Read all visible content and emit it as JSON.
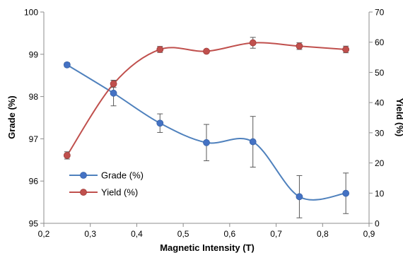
{
  "chart_data": {
    "type": "line",
    "title": "",
    "xlabel": "Magnetic Intensity (T)",
    "ylabel_left": "Grade (%)",
    "ylabel_right": "Yield  (%)",
    "xlim": [
      0.2,
      0.9
    ],
    "ylim_left": [
      95,
      100
    ],
    "ylim_right": [
      0,
      70
    ],
    "x_ticks": [
      "0,2",
      "0,3",
      "0,4",
      "0,5",
      "0,6",
      "0,7",
      "0,8",
      "0,9"
    ],
    "y_left_ticks": [
      "95",
      "96",
      "97",
      "98",
      "99",
      "100"
    ],
    "y_right_ticks": [
      "0",
      "10",
      "20",
      "30",
      "40",
      "50",
      "60",
      "70"
    ],
    "grid": false,
    "legend_position": "bottom-left",
    "x": [
      0.25,
      0.35,
      0.45,
      0.55,
      0.65,
      0.75,
      0.85
    ],
    "series": [
      {
        "name": "Grade (%)",
        "axis": "left",
        "color": "#4472C4",
        "line_color": "#4F81BD",
        "values": [
          98.75,
          98.08,
          97.37,
          96.91,
          96.93,
          95.63,
          95.71
        ],
        "errors": [
          0.05,
          0.3,
          0.22,
          0.43,
          0.6,
          0.5,
          0.48
        ]
      },
      {
        "name": "Yield  (%)",
        "axis": "right",
        "color": "#C0504D",
        "line_color": "#C0504D",
        "values": [
          22.5,
          46.2,
          57.6,
          57.0,
          59.8,
          58.7,
          57.6
        ],
        "errors": [
          1.2,
          1.2,
          1.0,
          0.5,
          1.8,
          1.1,
          1.1
        ]
      }
    ]
  }
}
